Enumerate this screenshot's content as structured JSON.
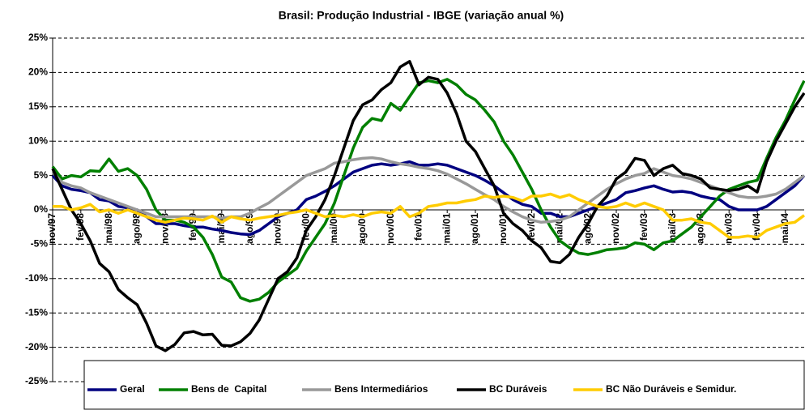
{
  "chart_data": {
    "type": "line",
    "title": "Brasil: Produção Industrial - IBGE (variação anual %)",
    "categories": [
      "nov/97",
      null,
      null,
      "fev/98",
      null,
      null,
      "mai/98",
      null,
      null,
      "ago/98",
      null,
      null,
      "nov/98",
      null,
      null,
      "fev/99",
      null,
      null,
      "mai/99",
      null,
      null,
      "ago/99",
      null,
      null,
      "nov/99",
      null,
      null,
      "fev/00",
      null,
      null,
      "mai/00",
      null,
      null,
      "ago/00",
      null,
      null,
      "nov/00",
      null,
      null,
      "fev/01",
      null,
      null,
      "mai/01",
      null,
      null,
      "ago/01",
      null,
      null,
      "nov/01",
      null,
      null,
      "fev/02",
      null,
      null,
      "mai/02",
      null,
      null,
      "ago/02",
      null,
      null,
      "nov/02",
      null,
      null,
      "fev/03",
      null,
      null,
      "mai/03",
      null,
      null,
      "ago/03",
      null,
      null,
      "nov/03",
      null,
      null,
      "fev/04",
      null,
      null,
      "mai/04",
      null,
      null
    ],
    "ylim": [
      -25,
      25
    ],
    "yticks": [
      {
        "value": -25,
        "label": "-25%"
      },
      {
        "value": -20,
        "label": "-20%"
      },
      {
        "value": -15,
        "label": "-15%"
      },
      {
        "value": -10,
        "label": "-10%"
      },
      {
        "value": -5,
        "label": "-5%"
      },
      {
        "value": 0,
        "label": "0%"
      },
      {
        "value": 5,
        "label": "5%"
      },
      {
        "value": 10,
        "label": "10%"
      },
      {
        "value": 15,
        "label": "15%"
      },
      {
        "value": 20,
        "label": "20%"
      },
      {
        "value": 25,
        "label": "25%"
      }
    ],
    "grid": true,
    "legend": "bottom",
    "series": [
      {
        "name": "Geral",
        "color": "#000080",
        "values": [
          5,
          3.5,
          3,
          2.8,
          2.5,
          1.5,
          1.3,
          0.5,
          0.3,
          0,
          -1,
          -2,
          -2,
          -2,
          -2.3,
          -2.5,
          -2.5,
          -2.8,
          -3,
          -3.3,
          -3.5,
          -3.6,
          -3,
          -2,
          -1,
          -0.5,
          0,
          1.5,
          2,
          2.7,
          3.5,
          4.5,
          5.5,
          6,
          6.5,
          6.7,
          6.5,
          6.7,
          7,
          6.5,
          6.5,
          6.7,
          6.5,
          6,
          5.5,
          5,
          4.3,
          3.5,
          2.5,
          1.5,
          0.8,
          0.5,
          -0.5,
          -0.5,
          -1,
          -1,
          -0.5,
          0,
          0.5,
          1,
          1.5,
          2.5,
          2.8,
          3.2,
          3.5,
          3,
          2.6,
          2.7,
          2.5,
          2,
          1.7,
          1.5,
          0.5,
          0,
          0,
          0,
          0.5,
          1.5,
          2.5,
          3.5,
          5
        ]
      },
      {
        "name": "Bens de  Capital",
        "color": "#008000",
        "values": [
          6.3,
          4.5,
          5,
          4.8,
          5.7,
          5.6,
          7.4,
          5.6,
          6,
          5,
          3,
          0,
          -1.5,
          -1.5,
          -1.8,
          -2.5,
          -4,
          -6.5,
          -9.8,
          -10.5,
          -12.8,
          -13.3,
          -13,
          -12,
          -10.5,
          -9.5,
          -8.5,
          -6,
          -4,
          -2,
          1,
          5,
          9,
          12,
          13.3,
          13,
          15.5,
          14.5,
          16.5,
          18.5,
          18.8,
          18.5,
          19,
          18.2,
          16.8,
          16,
          14.5,
          12.8,
          10,
          8,
          5.5,
          3,
          0,
          -2.5,
          -4.5,
          -5.5,
          -6.3,
          -6.5,
          -6.2,
          -5.8,
          -5.7,
          -5.5,
          -4.8,
          -5,
          -5.8,
          -4.8,
          -4.5,
          -3.5,
          -2.5,
          -1,
          0.5,
          2,
          3,
          3.5,
          4,
          4.3,
          7.5,
          10.5,
          13,
          16,
          18.8
        ]
      },
      {
        "name": "Bens Intermediários",
        "color": "#999999",
        "values": [
          5.5,
          4,
          3.5,
          3.2,
          2.5,
          2,
          1.5,
          1,
          0.5,
          0,
          -0.5,
          -1,
          -1,
          -1,
          -1,
          -1,
          -1,
          -1,
          -1.2,
          -1,
          -1,
          -0.5,
          0.3,
          1,
          2,
          3,
          4,
          5,
          5.5,
          6,
          6.8,
          7,
          7.3,
          7.5,
          7.6,
          7.4,
          7,
          6.7,
          6.5,
          6.2,
          6,
          5.7,
          5.2,
          4.5,
          3.8,
          3,
          2.2,
          1.5,
          0.5,
          -0.3,
          -1,
          -1.5,
          -1.8,
          -1.7,
          -1.5,
          -1,
          0,
          1,
          2,
          3,
          3.8,
          4.5,
          5,
          5.3,
          6,
          5.5,
          5,
          4.8,
          4.5,
          4,
          3.5,
          3,
          2.5,
          2,
          1.8,
          1.8,
          2,
          2.3,
          3,
          4,
          5
        ]
      },
      {
        "name": "BC Duráveis",
        "color": "#000000",
        "values": [
          6,
          3,
          0,
          -2,
          -4.5,
          -7.8,
          -9,
          -11.6,
          -12.8,
          -13.8,
          -16.5,
          -19.8,
          -20.5,
          -19.6,
          -17.9,
          -17.7,
          -18.2,
          -18.1,
          -19.7,
          -19.8,
          -19.2,
          -18,
          -16,
          -13,
          -10,
          -9,
          -7,
          -3,
          -1,
          1.5,
          5,
          9,
          13,
          15.3,
          16,
          17.5,
          18.5,
          20.8,
          21.6,
          18.2,
          19.3,
          19,
          17,
          14,
          10,
          8.5,
          6,
          3.5,
          -0.5,
          -2,
          -3,
          -4.5,
          -5.5,
          -7.5,
          -7.7,
          -6.5,
          -4,
          -2,
          0.5,
          2,
          4.5,
          5.5,
          7.5,
          7.2,
          5,
          6,
          6.5,
          5.3,
          5,
          4.5,
          3.2,
          3,
          2.8,
          3,
          3.5,
          2.6,
          7,
          10,
          12.5,
          15,
          17
        ]
      },
      {
        "name": "BC Não Duráveis e Semidur.",
        "color": "#FFCC00",
        "values": [
          0.5,
          0.5,
          0,
          0.3,
          0.8,
          -0.3,
          0,
          -0.5,
          0,
          -0.5,
          -1,
          -1.5,
          -1.8,
          -1.5,
          -1.2,
          -1.3,
          -1.5,
          -0.9,
          -1.8,
          -1,
          -1.3,
          -1.5,
          -1.2,
          -1,
          -0.8,
          -0.5,
          -0.3,
          0,
          -0.5,
          -1,
          -0.8,
          -1,
          -0.7,
          -1,
          -0.5,
          -0.3,
          -0.5,
          0.5,
          -1,
          -0.5,
          0.5,
          0.7,
          1,
          1,
          1.3,
          1.5,
          2,
          1.8,
          2,
          1.8,
          1.3,
          2,
          2,
          2.3,
          1.8,
          2.2,
          1.5,
          1,
          0.5,
          0.3,
          0.5,
          1,
          0.5,
          1,
          0.5,
          0,
          -1.5,
          -1.5,
          -1.3,
          -1.8,
          -2,
          -3,
          -4,
          -4,
          -3.8,
          -4,
          -3,
          -2.5,
          -2,
          -1.8,
          -0.8
        ]
      }
    ]
  }
}
